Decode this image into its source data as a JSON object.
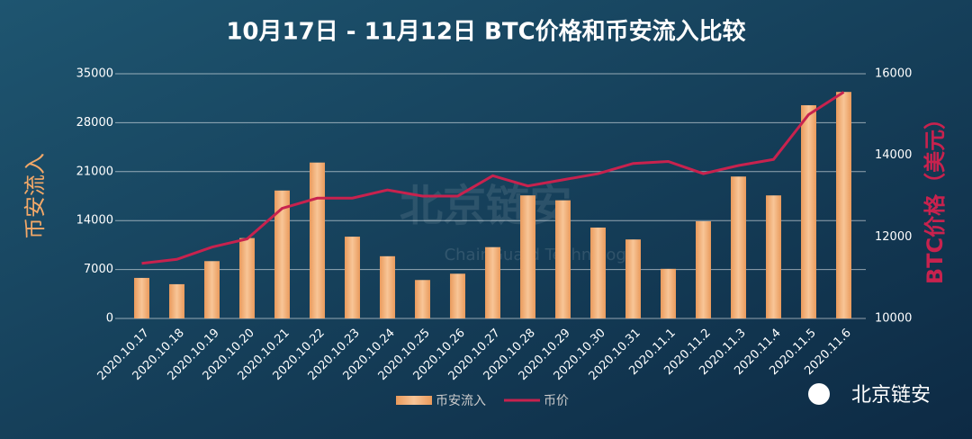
{
  "chart_data": {
    "type": "bar-line",
    "title": "10月17日 - 11月12日 BTC价格和币安流入比较",
    "y_label": "币安流入",
    "y2_label": "BTC价格（美元）",
    "watermark": "北京链安",
    "watermark_sub": "ChainGuard Technology",
    "brand": "北京链安",
    "categories": [
      "2020.10.17",
      "2020.10.18",
      "2020.10.19",
      "2020.10.20",
      "2020.10.21",
      "2020.10.22",
      "2020.10.23",
      "2020.10.24",
      "2020.10.25",
      "2020.10.26",
      "2020.10.27",
      "2020.10.28",
      "2020.10.29",
      "2020.10.30",
      "2020.10.31",
      "2020.11.1",
      "2020.11.2",
      "2020.11.3",
      "2020.11.4",
      "2020.11.5",
      "2020.11.6"
    ],
    "series": [
      {
        "name": "币安流入",
        "color": "#f2a868",
        "kind": "bar",
        "axis": "y",
        "values": [
          5800,
          4900,
          8200,
          11500,
          18300,
          22300,
          11700,
          8900,
          5500,
          6400,
          10200,
          17600,
          16900,
          13000,
          11300,
          7100,
          13900,
          20300,
          17600,
          30500,
          32400
        ]
      },
      {
        "name": "币价",
        "color": "#c8224e",
        "kind": "line",
        "axis": "y2",
        "values": [
          11350,
          11450,
          11750,
          11950,
          12700,
          12950,
          12950,
          13150,
          13000,
          13000,
          13500,
          13250,
          13400,
          13550,
          13800,
          13850,
          13550,
          13750,
          13900,
          15000,
          15550
        ]
      }
    ],
    "ylim": [
      0,
      35000
    ],
    "yticks": [
      0,
      7000,
      14000,
      21000,
      28000,
      35000
    ],
    "y2lim": [
      10000,
      16000
    ],
    "y2ticks": [
      10000,
      12000,
      14000,
      16000
    ],
    "grid": true
  }
}
